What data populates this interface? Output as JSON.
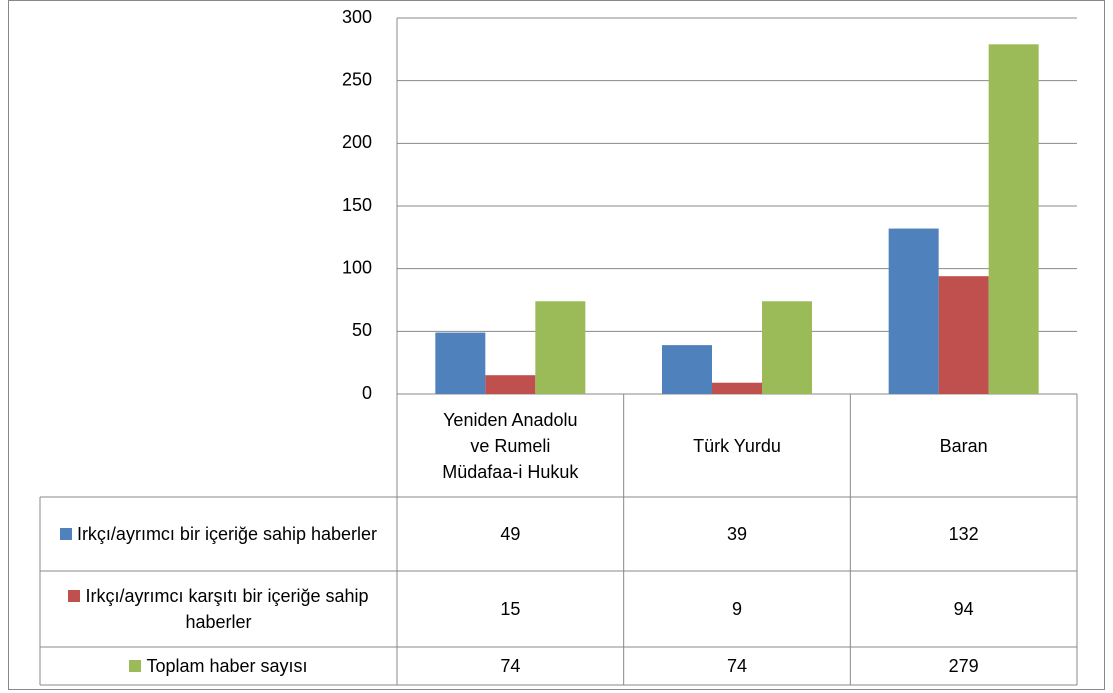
{
  "chart_data": {
    "type": "bar",
    "categories": [
      "Yeniden Anadolu ve Rumeli Müdafaa-i Hukuk",
      "Türk Yurdu",
      "Baran"
    ],
    "series": [
      {
        "name": "Irkçı/ayrımcı bir içeriğe sahip haberler",
        "color": "#4f81bd",
        "values": [
          49,
          39,
          132
        ]
      },
      {
        "name": "Irkçı/ayrımcı karşıtı bir içeriğe sahip haberler",
        "color": "#c0504d",
        "values": [
          15,
          9,
          94
        ]
      },
      {
        "name": "Toplam haber sayısı",
        "color": "#9bbb59",
        "values": [
          74,
          74,
          279
        ]
      }
    ],
    "ylim": [
      0,
      300
    ],
    "yticks": [
      0,
      50,
      100,
      150,
      200,
      250,
      300
    ],
    "grid": true
  }
}
